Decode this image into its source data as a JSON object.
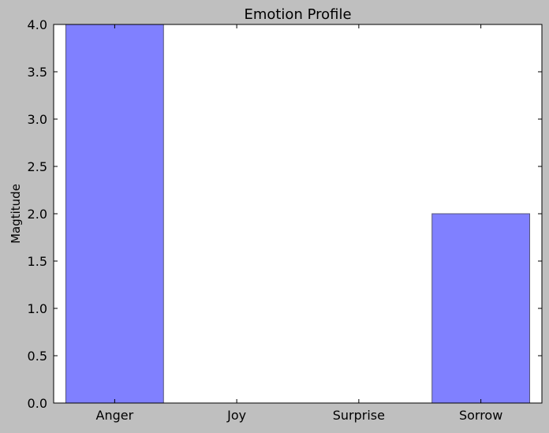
{
  "chart_data": {
    "type": "bar",
    "title": "Emotion Profile",
    "xlabel": "",
    "ylabel": "Magtitude",
    "categories": [
      "Anger",
      "Joy",
      "Surprise",
      "Sorrow"
    ],
    "values": [
      4,
      0,
      0,
      2
    ],
    "ylim": [
      0,
      4.0
    ],
    "yticks": [
      "0.0",
      "0.5",
      "1.0",
      "1.5",
      "2.0",
      "2.5",
      "3.0",
      "3.5",
      "4.0"
    ],
    "grid": false,
    "legend": "none",
    "colors": {
      "figure_background": "#bfbfbf",
      "axes_background": "#ffffff",
      "bar_fill": "#8080ff",
      "bar_edge": "#555577",
      "axis": "#000000"
    }
  }
}
